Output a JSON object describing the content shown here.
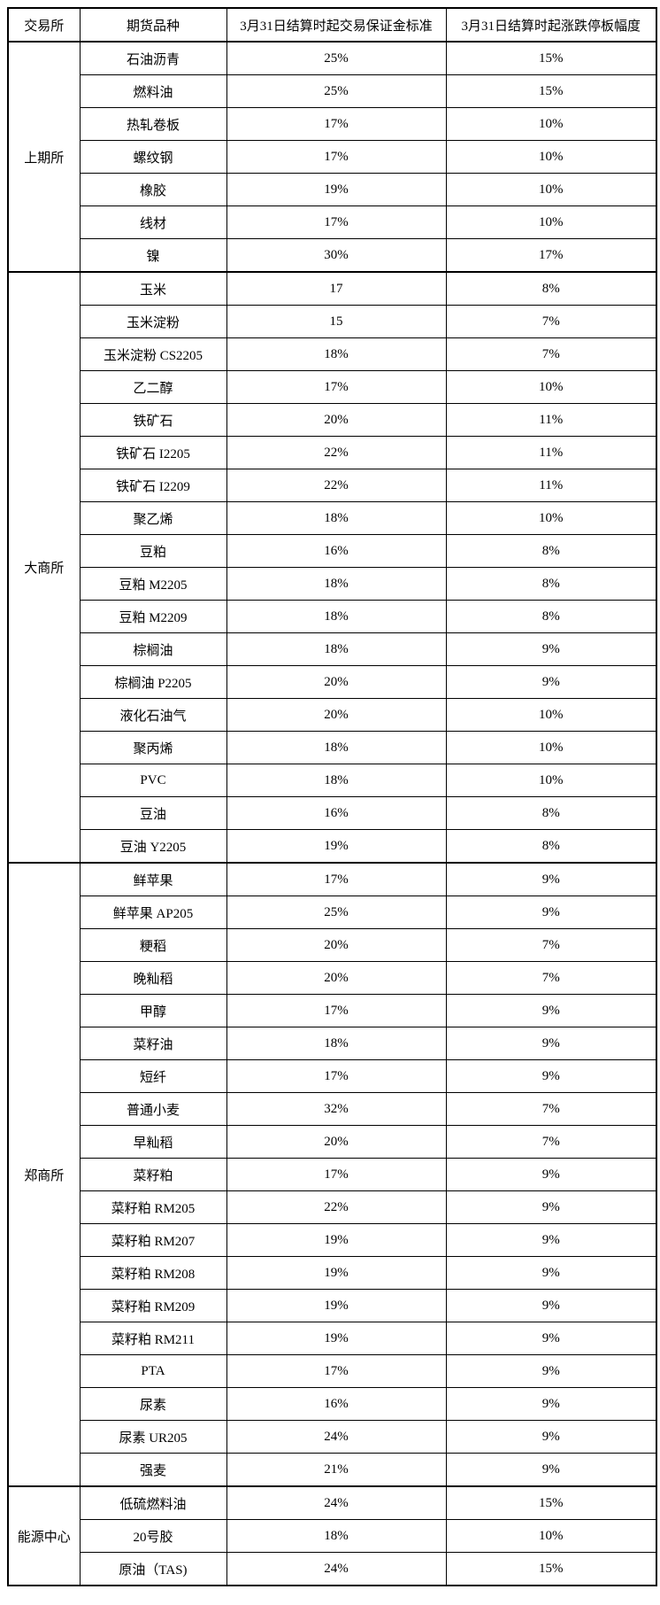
{
  "table": {
    "headers": [
      "交易所",
      "期货品种",
      "3月31日结算时起交易保证金标准",
      "3月31日结算时起涨跌停板幅度"
    ],
    "groups": [
      {
        "exchange": "上期所",
        "rows": [
          [
            "石油沥青",
            "25%",
            "15%"
          ],
          [
            "燃料油",
            "25%",
            "15%"
          ],
          [
            "热轧卷板",
            "17%",
            "10%"
          ],
          [
            "螺纹钢",
            "17%",
            "10%"
          ],
          [
            "橡胶",
            "19%",
            "10%"
          ],
          [
            "线材",
            "17%",
            "10%"
          ],
          [
            "镍",
            "30%",
            "17%"
          ]
        ]
      },
      {
        "exchange": "大商所",
        "rows": [
          [
            "玉米",
            "17",
            "8%"
          ],
          [
            "玉米淀粉",
            "15",
            "7%"
          ],
          [
            "玉米淀粉 CS2205",
            "18%",
            "7%"
          ],
          [
            "乙二醇",
            "17%",
            "10%"
          ],
          [
            "铁矿石",
            "20%",
            "11%"
          ],
          [
            "铁矿石 I2205",
            "22%",
            "11%"
          ],
          [
            "铁矿石 I2209",
            "22%",
            "11%"
          ],
          [
            "聚乙烯",
            "18%",
            "10%"
          ],
          [
            "豆粕",
            "16%",
            "8%"
          ],
          [
            "豆粕 M2205",
            "18%",
            "8%"
          ],
          [
            "豆粕 M2209",
            "18%",
            "8%"
          ],
          [
            "棕榈油",
            "18%",
            "9%"
          ],
          [
            "棕榈油 P2205",
            "20%",
            "9%"
          ],
          [
            "液化石油气",
            "20%",
            "10%"
          ],
          [
            "聚丙烯",
            "18%",
            "10%"
          ],
          [
            "PVC",
            "18%",
            "10%"
          ],
          [
            "豆油",
            "16%",
            "8%"
          ],
          [
            "豆油 Y2205",
            "19%",
            "8%"
          ]
        ]
      },
      {
        "exchange": "郑商所",
        "rows": [
          [
            "鲜苹果",
            "17%",
            "9%"
          ],
          [
            "鲜苹果 AP205",
            "25%",
            "9%"
          ],
          [
            "粳稻",
            "20%",
            "7%"
          ],
          [
            "晚籼稻",
            "20%",
            "7%"
          ],
          [
            "甲醇",
            "17%",
            "9%"
          ],
          [
            "菜籽油",
            "18%",
            "9%"
          ],
          [
            "短纤",
            "17%",
            "9%"
          ],
          [
            "普通小麦",
            "32%",
            "7%"
          ],
          [
            "早籼稻",
            "20%",
            "7%"
          ],
          [
            "菜籽粕",
            "17%",
            "9%"
          ],
          [
            "菜籽粕 RM205",
            "22%",
            "9%"
          ],
          [
            "菜籽粕 RM207",
            "19%",
            "9%"
          ],
          [
            "菜籽粕 RM208",
            "19%",
            "9%"
          ],
          [
            "菜籽粕 RM209",
            "19%",
            "9%"
          ],
          [
            "菜籽粕 RM211",
            "19%",
            "9%"
          ],
          [
            "PTA",
            "17%",
            "9%"
          ],
          [
            "尿素",
            "16%",
            "9%"
          ],
          [
            "尿素 UR205",
            "24%",
            "9%"
          ],
          [
            "强麦",
            "21%",
            "9%"
          ]
        ]
      },
      {
        "exchange": "能源中心",
        "rows": [
          [
            "低硫燃料油",
            "24%",
            "15%"
          ],
          [
            "20号胶",
            "18%",
            "10%"
          ],
          [
            "原油（TAS)",
            "24%",
            "15%"
          ]
        ]
      }
    ]
  },
  "chart_data": {
    "type": "table",
    "title": "",
    "columns": [
      "交易所",
      "期货品种",
      "3月31日结算时起交易保证金标准",
      "3月31日结算时起涨跌停板幅度"
    ],
    "rows": [
      [
        "上期所",
        "石油沥青",
        "25%",
        "15%"
      ],
      [
        "上期所",
        "燃料油",
        "25%",
        "15%"
      ],
      [
        "上期所",
        "热轧卷板",
        "17%",
        "10%"
      ],
      [
        "上期所",
        "螺纹钢",
        "17%",
        "10%"
      ],
      [
        "上期所",
        "橡胶",
        "19%",
        "10%"
      ],
      [
        "上期所",
        "线材",
        "17%",
        "10%"
      ],
      [
        "上期所",
        "镍",
        "30%",
        "17%"
      ],
      [
        "大商所",
        "玉米",
        "17",
        "8%"
      ],
      [
        "大商所",
        "玉米淀粉",
        "15",
        "7%"
      ],
      [
        "大商所",
        "玉米淀粉 CS2205",
        "18%",
        "7%"
      ],
      [
        "大商所",
        "乙二醇",
        "17%",
        "10%"
      ],
      [
        "大商所",
        "铁矿石",
        "20%",
        "11%"
      ],
      [
        "大商所",
        "铁矿石 I2205",
        "22%",
        "11%"
      ],
      [
        "大商所",
        "铁矿石 I2209",
        "22%",
        "11%"
      ],
      [
        "大商所",
        "聚乙烯",
        "18%",
        "10%"
      ],
      [
        "大商所",
        "豆粕",
        "16%",
        "8%"
      ],
      [
        "大商所",
        "豆粕 M2205",
        "18%",
        "8%"
      ],
      [
        "大商所",
        "豆粕 M2209",
        "18%",
        "8%"
      ],
      [
        "大商所",
        "棕榈油",
        "18%",
        "9%"
      ],
      [
        "大商所",
        "棕榈油 P2205",
        "20%",
        "9%"
      ],
      [
        "大商所",
        "液化石油气",
        "20%",
        "10%"
      ],
      [
        "大商所",
        "聚丙烯",
        "18%",
        "10%"
      ],
      [
        "大商所",
        "PVC",
        "18%",
        "10%"
      ],
      [
        "大商所",
        "豆油",
        "16%",
        "8%"
      ],
      [
        "大商所",
        "豆油 Y2205",
        "19%",
        "8%"
      ],
      [
        "郑商所",
        "鲜苹果",
        "17%",
        "9%"
      ],
      [
        "郑商所",
        "鲜苹果 AP205",
        "25%",
        "9%"
      ],
      [
        "郑商所",
        "粳稻",
        "20%",
        "7%"
      ],
      [
        "郑商所",
        "晚籼稻",
        "20%",
        "7%"
      ],
      [
        "郑商所",
        "甲醇",
        "17%",
        "9%"
      ],
      [
        "郑商所",
        "菜籽油",
        "18%",
        "9%"
      ],
      [
        "郑商所",
        "短纤",
        "17%",
        "9%"
      ],
      [
        "郑商所",
        "普通小麦",
        "32%",
        "7%"
      ],
      [
        "郑商所",
        "早籼稻",
        "20%",
        "7%"
      ],
      [
        "郑商所",
        "菜籽粕",
        "17%",
        "9%"
      ],
      [
        "郑商所",
        "菜籽粕 RM205",
        "22%",
        "9%"
      ],
      [
        "郑商所",
        "菜籽粕 RM207",
        "19%",
        "9%"
      ],
      [
        "郑商所",
        "菜籽粕 RM208",
        "19%",
        "9%"
      ],
      [
        "郑商所",
        "菜籽粕 RM209",
        "19%",
        "9%"
      ],
      [
        "郑商所",
        "菜籽粕 RM211",
        "19%",
        "9%"
      ],
      [
        "郑商所",
        "PTA",
        "17%",
        "9%"
      ],
      [
        "郑商所",
        "尿素",
        "16%",
        "9%"
      ],
      [
        "郑商所",
        "尿素 UR205",
        "24%",
        "9%"
      ],
      [
        "郑商所",
        "强麦",
        "21%",
        "9%"
      ],
      [
        "能源中心",
        "低硫燃料油",
        "24%",
        "15%"
      ],
      [
        "能源中心",
        "20号胶",
        "18%",
        "10%"
      ],
      [
        "能源中心",
        "原油（TAS)",
        "24%",
        "15%"
      ]
    ]
  }
}
